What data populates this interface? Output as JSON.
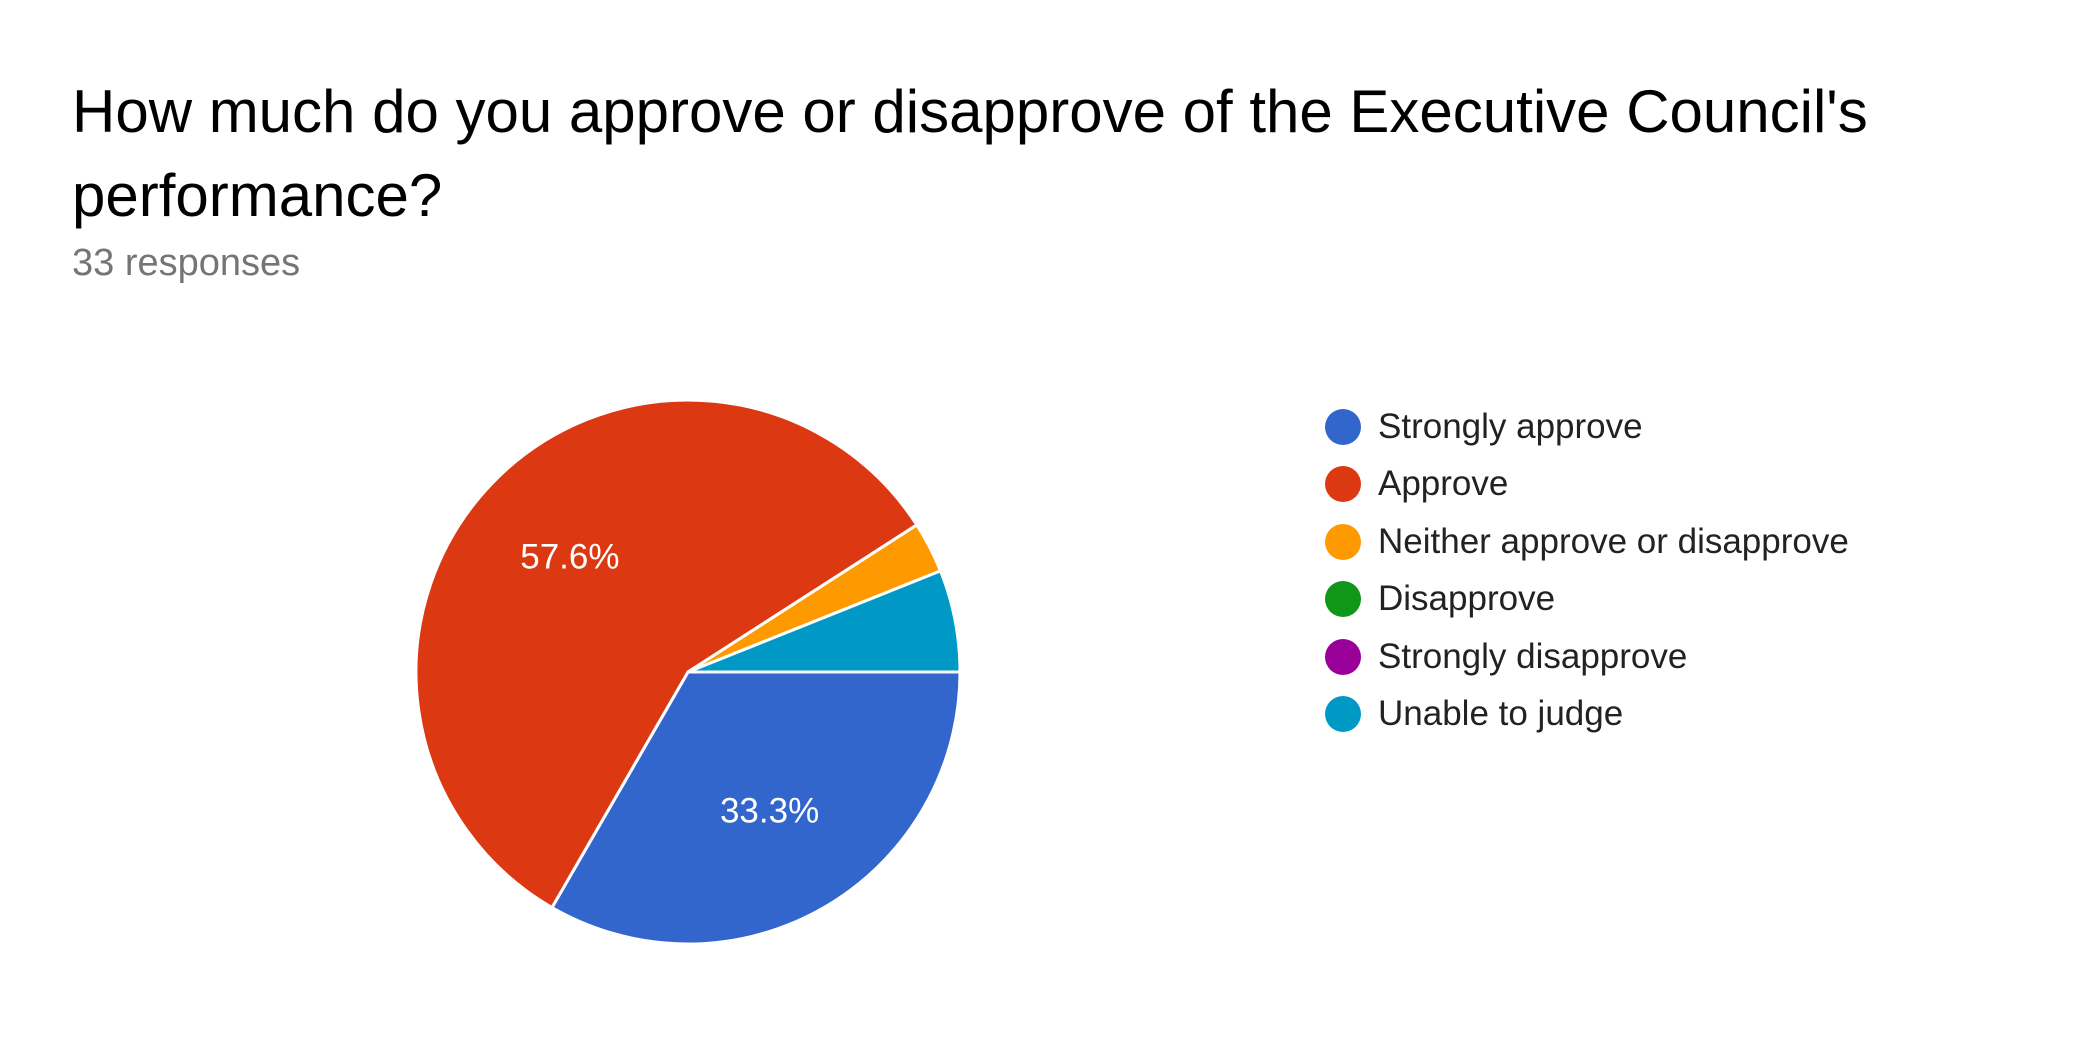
{
  "question": {
    "title": "How much do you approve or disapprove of the Executive Council's performance?",
    "responses": "33 responses"
  },
  "chart_data": {
    "type": "pie",
    "title": "How much do you approve or disapprove of the Executive Council's performance?",
    "subtitle": "33 responses",
    "categories": [
      "Strongly approve",
      "Approve",
      "Neither approve or disapprove",
      "Disapprove",
      "Strongly disapprove",
      "Unable to judge"
    ],
    "values": [
      11,
      19,
      1,
      0,
      0,
      2
    ],
    "percent_labels": [
      "33.3%",
      "57.6%",
      "",
      "",
      "",
      ""
    ],
    "colors": [
      "#3366cc",
      "#dc3912",
      "#ff9900",
      "#109618",
      "#990099",
      "#0099c6"
    ],
    "legend_position": "right"
  }
}
